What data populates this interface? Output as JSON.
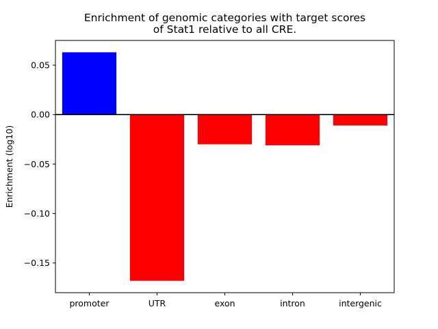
{
  "chart_data": {
    "type": "bar",
    "title_lines": [
      "Enrichment of genomic categories with target scores",
      "of Stat1 relative to all CRE."
    ],
    "xlabel": "",
    "ylabel": "Enrichment (log10)",
    "categories": [
      "promoter",
      "UTR",
      "exon",
      "intron",
      "intergenic"
    ],
    "values": [
      0.063,
      -0.168,
      -0.03,
      -0.031,
      -0.011
    ],
    "bar_colors": [
      "#0000ff",
      "#ff0000",
      "#ff0000",
      "#ff0000",
      "#ff0000"
    ],
    "ylim": [
      -0.18,
      0.075
    ],
    "yticks": [
      0.05,
      0.0,
      -0.05,
      -0.1,
      -0.15
    ],
    "ytick_labels": [
      "0.05",
      "0.00",
      "−0.05",
      "−0.10",
      "−0.15"
    ],
    "zero_line": true,
    "grid": false,
    "legend": "none"
  }
}
